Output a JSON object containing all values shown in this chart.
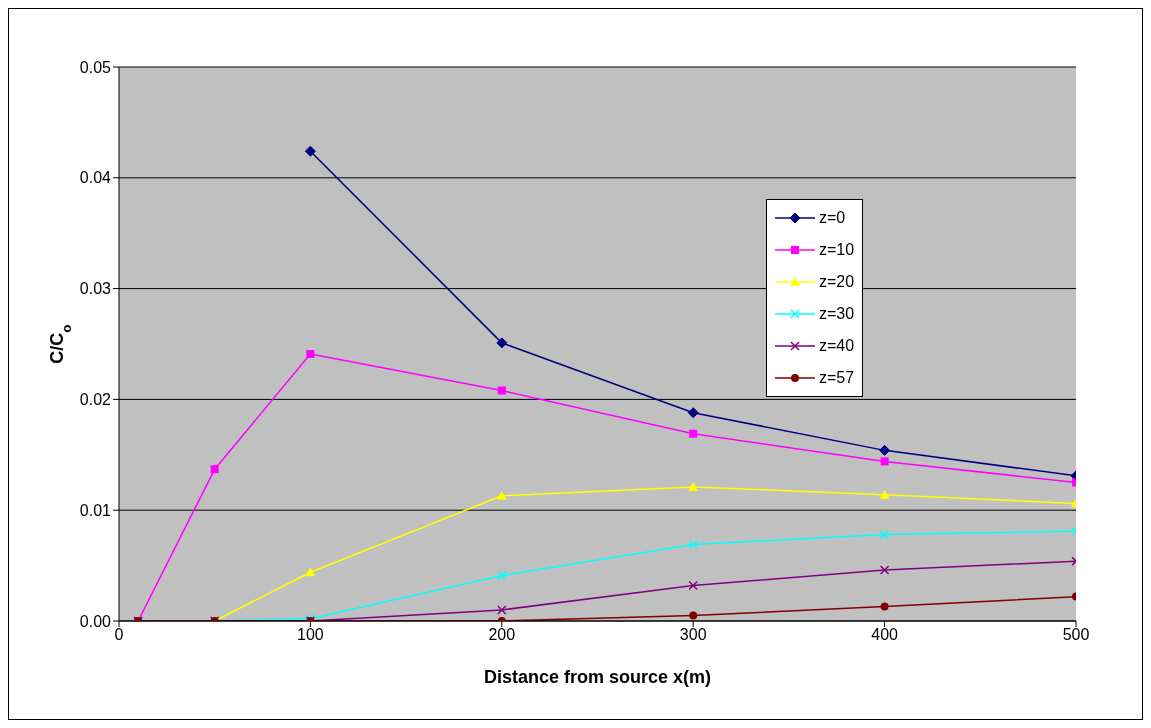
{
  "chart_data": {
    "type": "line",
    "xlabel": "Distance from source x(m)",
    "ylabel": "C/C$_{o}$",
    "x": [
      10,
      50,
      100,
      200,
      300,
      400,
      500
    ],
    "xlim": [
      0,
      500
    ],
    "xticks": [
      0,
      100,
      200,
      300,
      400,
      500
    ],
    "ylim": [
      0,
      0.05
    ],
    "yticks": [
      {
        "value": 0,
        "label": "0.00"
      },
      {
        "value": 0.01,
        "label": "0.01"
      },
      {
        "value": 0.02,
        "label": "0.02"
      },
      {
        "value": 0.03,
        "label": "0.03"
      },
      {
        "value": 0.04,
        "label": "0.04"
      },
      {
        "value": 0.05,
        "label": "0.05"
      }
    ],
    "grid": "y",
    "legend": "right",
    "series": [
      {
        "name": "z=0",
        "color": "#000080",
        "marker": "diamond",
        "values": [
          null,
          null,
          0.0424,
          0.0251,
          0.0188,
          0.0154,
          0.0131
        ]
      },
      {
        "name": "z=10",
        "color": "#ff00ff",
        "marker": "square",
        "values": [
          0,
          0.0137,
          0.0241,
          0.0208,
          0.0169,
          0.0144,
          0.0125
        ]
      },
      {
        "name": "z=20",
        "color": "#ffff00",
        "marker": "triangle",
        "values": [
          0,
          0,
          0.0044,
          0.0113,
          0.0121,
          0.0114,
          0.0106
        ]
      },
      {
        "name": "z=30",
        "color": "#00ffff",
        "marker": "cross",
        "values": [
          0,
          0,
          0.0002,
          0.0041,
          0.0069,
          0.0078,
          0.0081
        ]
      },
      {
        "name": "z=40",
        "color": "#800080",
        "marker": "cross",
        "values": [
          0,
          0,
          0,
          0.001,
          0.0032,
          0.0046,
          0.0054
        ]
      },
      {
        "name": "z=57",
        "color": "#800000",
        "marker": "circle",
        "values": [
          0,
          0,
          0,
          0,
          0.0005,
          0.0013,
          0.0022
        ]
      }
    ]
  }
}
